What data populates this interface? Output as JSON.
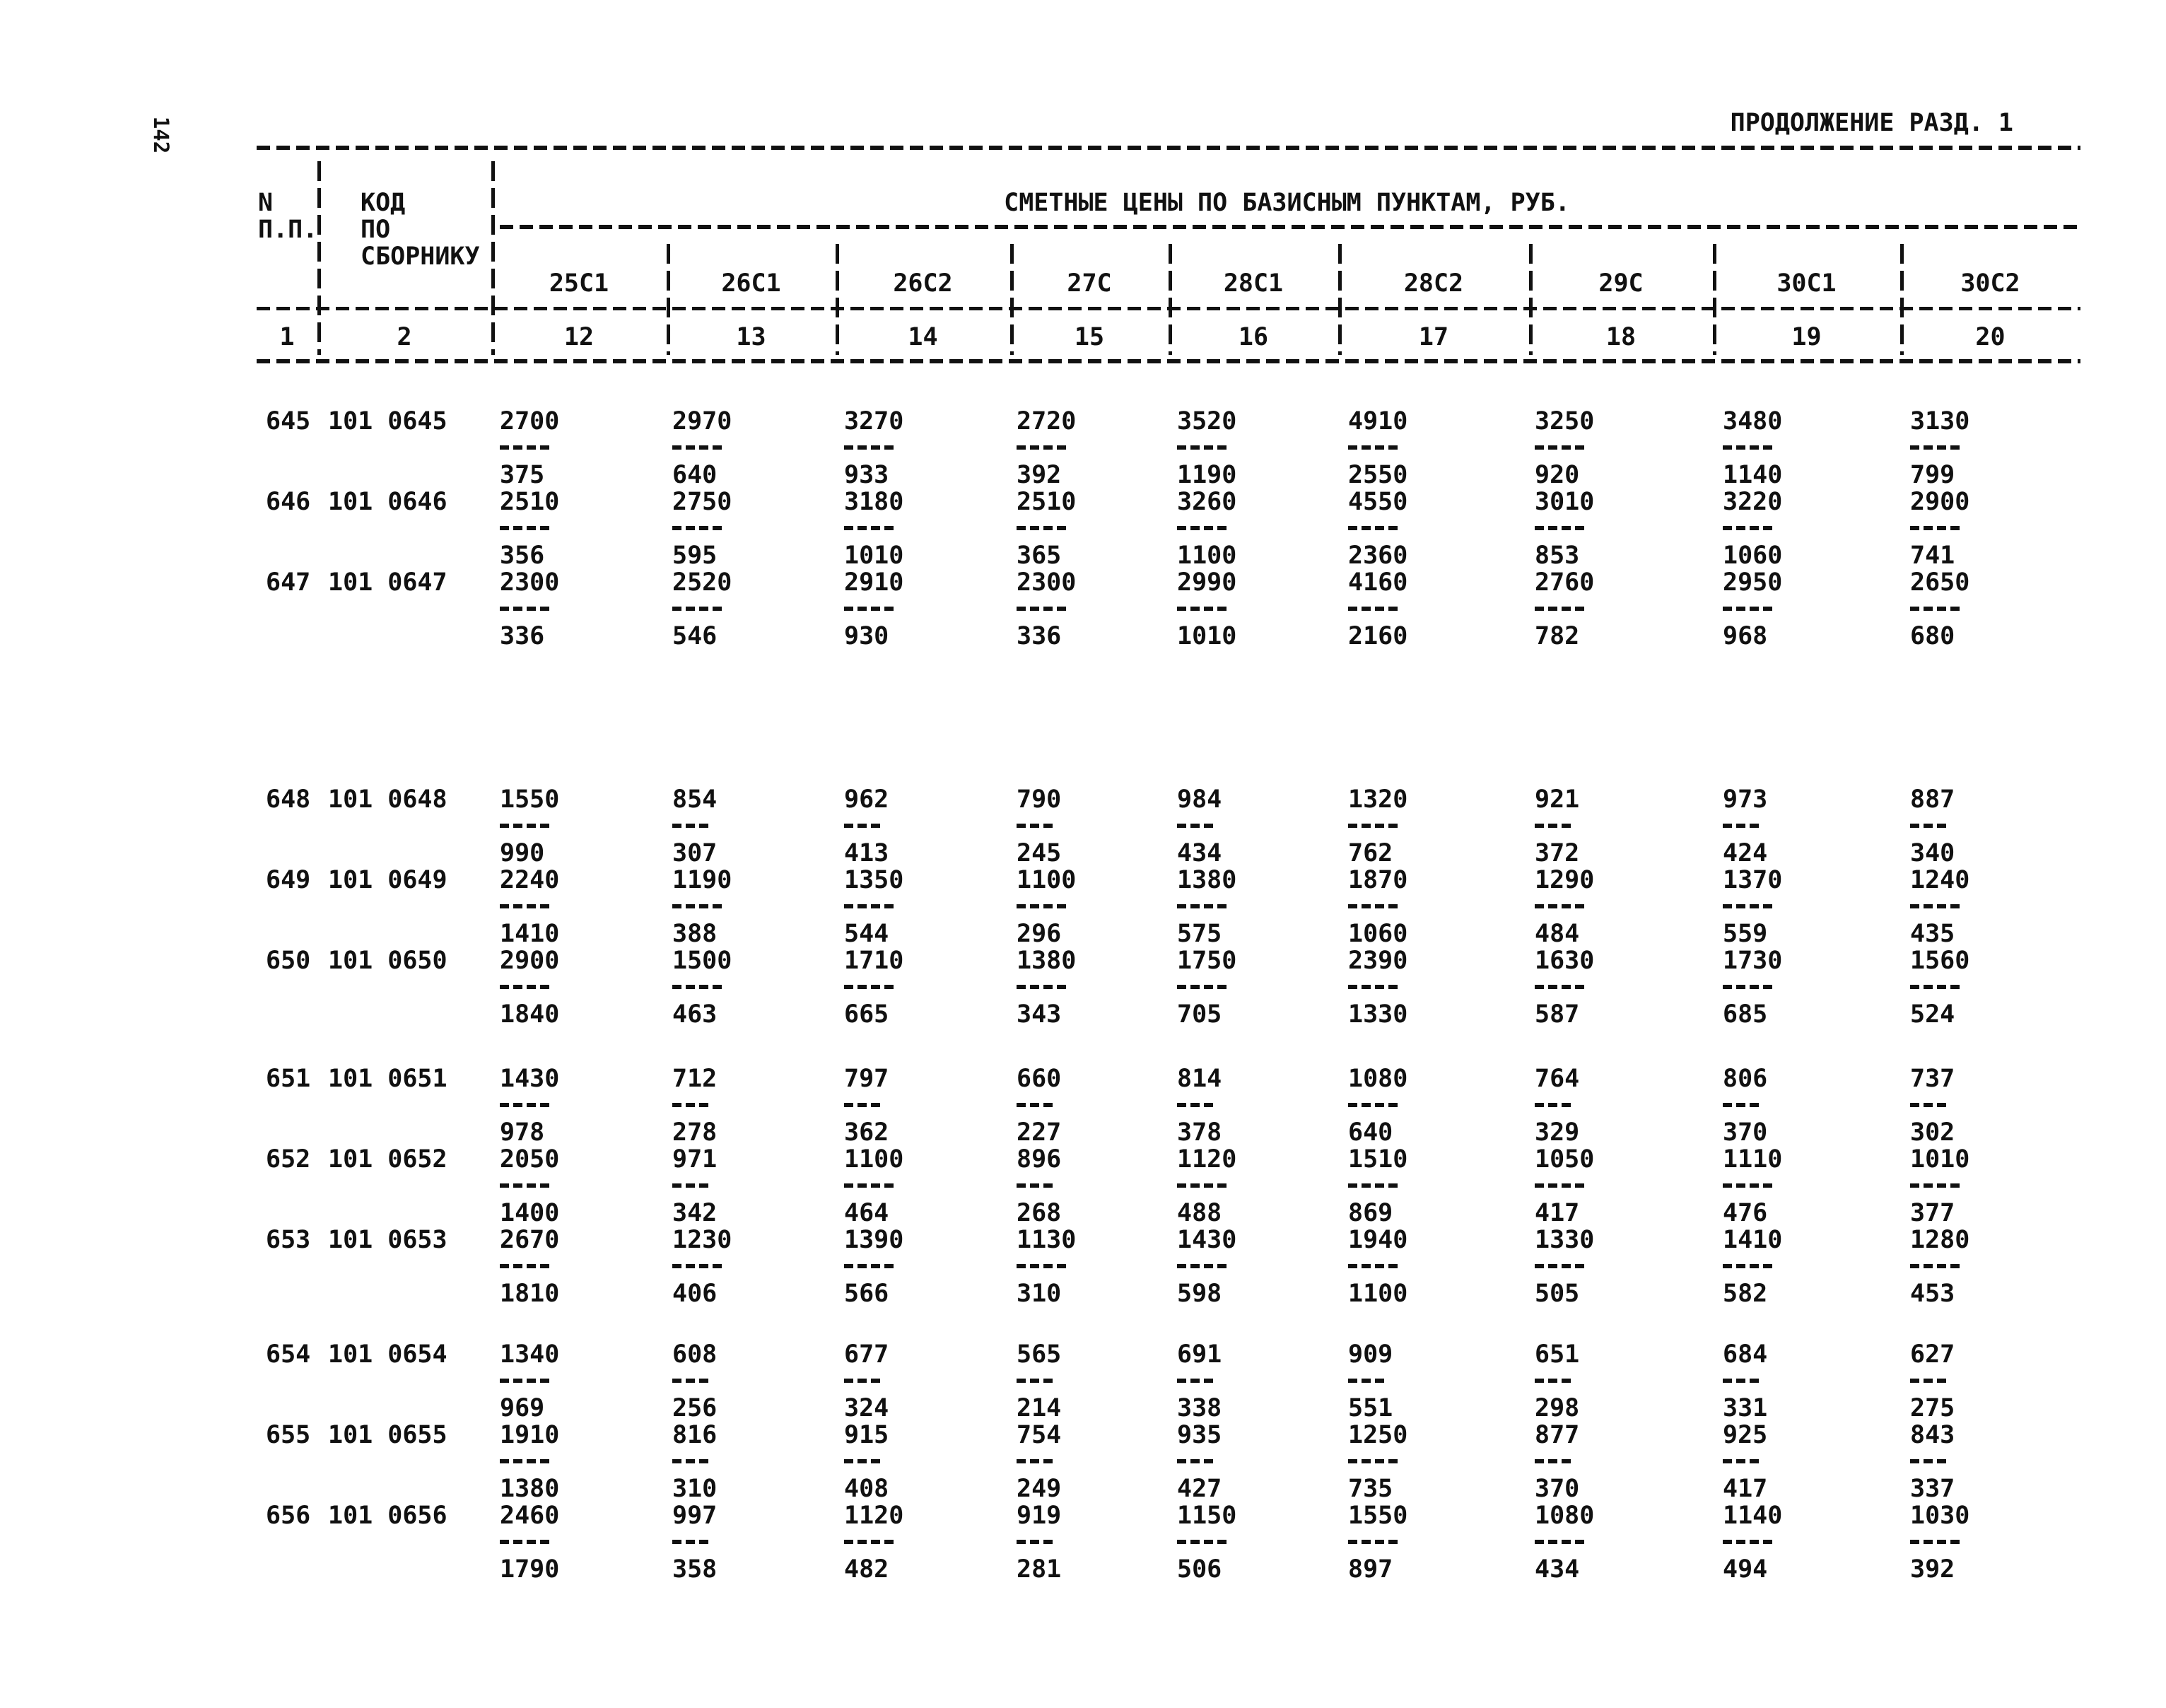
{
  "page": {
    "number": "142",
    "continuation": "ПРОДОЛЖЕНИЕ РАЗД. 1"
  },
  "table": {
    "col1_header": [
      "N",
      "П.П."
    ],
    "col2_header": [
      "КОД",
      "ПО",
      "СБОРНИКУ"
    ],
    "prices_title": "СМЕТНЫЕ ЦЕНЫ ПО БАЗИСНЫМ ПУНКТАМ, РУБ.",
    "point_labels": [
      "25С1",
      "26С1",
      "26С2",
      "27С",
      "28С1",
      "28С2",
      "29С",
      "30С1",
      "30С2"
    ],
    "column_numbers": [
      "1",
      "2",
      "12",
      "13",
      "14",
      "15",
      "16",
      "17",
      "18",
      "19",
      "20"
    ],
    "rows": [
      {
        "n": "645",
        "code": "101 0645",
        "num": [
          "2700",
          "2970",
          "3270",
          "2720",
          "3520",
          "4910",
          "3250",
          "3480",
          "3130"
        ],
        "den": [
          "375",
          "640",
          "933",
          "392",
          "1190",
          "2550",
          "920",
          "1140",
          "799"
        ]
      },
      {
        "n": "646",
        "code": "101 0646",
        "num": [
          "2510",
          "2750",
          "3180",
          "2510",
          "3260",
          "4550",
          "3010",
          "3220",
          "2900"
        ],
        "den": [
          "356",
          "595",
          "1010",
          "365",
          "1100",
          "2360",
          "853",
          "1060",
          "741"
        ]
      },
      {
        "n": "647",
        "code": "101 0647",
        "num": [
          "2300",
          "2520",
          "2910",
          "2300",
          "2990",
          "4160",
          "2760",
          "2950",
          "2650"
        ],
        "den": [
          "336",
          "546",
          "930",
          "336",
          "1010",
          "2160",
          "782",
          "968",
          "680"
        ]
      },
      {
        "n": "648",
        "code": "101 0648",
        "num": [
          "1550",
          "854",
          "962",
          "790",
          "984",
          "1320",
          "921",
          "973",
          "887"
        ],
        "den": [
          "990",
          "307",
          "413",
          "245",
          "434",
          "762",
          "372",
          "424",
          "340"
        ]
      },
      {
        "n": "649",
        "code": "101 0649",
        "num": [
          "2240",
          "1190",
          "1350",
          "1100",
          "1380",
          "1870",
          "1290",
          "1370",
          "1240"
        ],
        "den": [
          "1410",
          "388",
          "544",
          "296",
          "575",
          "1060",
          "484",
          "559",
          "435"
        ]
      },
      {
        "n": "650",
        "code": "101 0650",
        "num": [
          "2900",
          "1500",
          "1710",
          "1380",
          "1750",
          "2390",
          "1630",
          "1730",
          "1560"
        ],
        "den": [
          "1840",
          "463",
          "665",
          "343",
          "705",
          "1330",
          "587",
          "685",
          "524"
        ]
      },
      {
        "n": "651",
        "code": "101 0651",
        "num": [
          "1430",
          "712",
          "797",
          "660",
          "814",
          "1080",
          "764",
          "806",
          "737"
        ],
        "den": [
          "978",
          "278",
          "362",
          "227",
          "378",
          "640",
          "329",
          "370",
          "302"
        ]
      },
      {
        "n": "652",
        "code": "101 0652",
        "num": [
          "2050",
          "971",
          "1100",
          "896",
          "1120",
          "1510",
          "1050",
          "1110",
          "1010"
        ],
        "den": [
          "1400",
          "342",
          "464",
          "268",
          "488",
          "869",
          "417",
          "476",
          "377"
        ]
      },
      {
        "n": "653",
        "code": "101 0653",
        "num": [
          "2670",
          "1230",
          "1390",
          "1130",
          "1430",
          "1940",
          "1330",
          "1410",
          "1280"
        ],
        "den": [
          "1810",
          "406",
          "566",
          "310",
          "598",
          "1100",
          "505",
          "582",
          "453"
        ]
      },
      {
        "n": "654",
        "code": "101 0654",
        "num": [
          "1340",
          "608",
          "677",
          "565",
          "691",
          "909",
          "651",
          "684",
          "627"
        ],
        "den": [
          "969",
          "256",
          "324",
          "214",
          "338",
          "551",
          "298",
          "331",
          "275"
        ]
      },
      {
        "n": "655",
        "code": "101 0655",
        "num": [
          "1910",
          "816",
          "915",
          "754",
          "935",
          "1250",
          "877",
          "925",
          "843"
        ],
        "den": [
          "1380",
          "310",
          "408",
          "249",
          "427",
          "735",
          "370",
          "417",
          "337"
        ]
      },
      {
        "n": "656",
        "code": "101 0656",
        "num": [
          "2460",
          "997",
          "1120",
          "919",
          "1150",
          "1550",
          "1080",
          "1140",
          "1030"
        ],
        "den": [
          "1790",
          "358",
          "482",
          "281",
          "506",
          "897",
          "434",
          "494",
          "392"
        ]
      }
    ]
  }
}
